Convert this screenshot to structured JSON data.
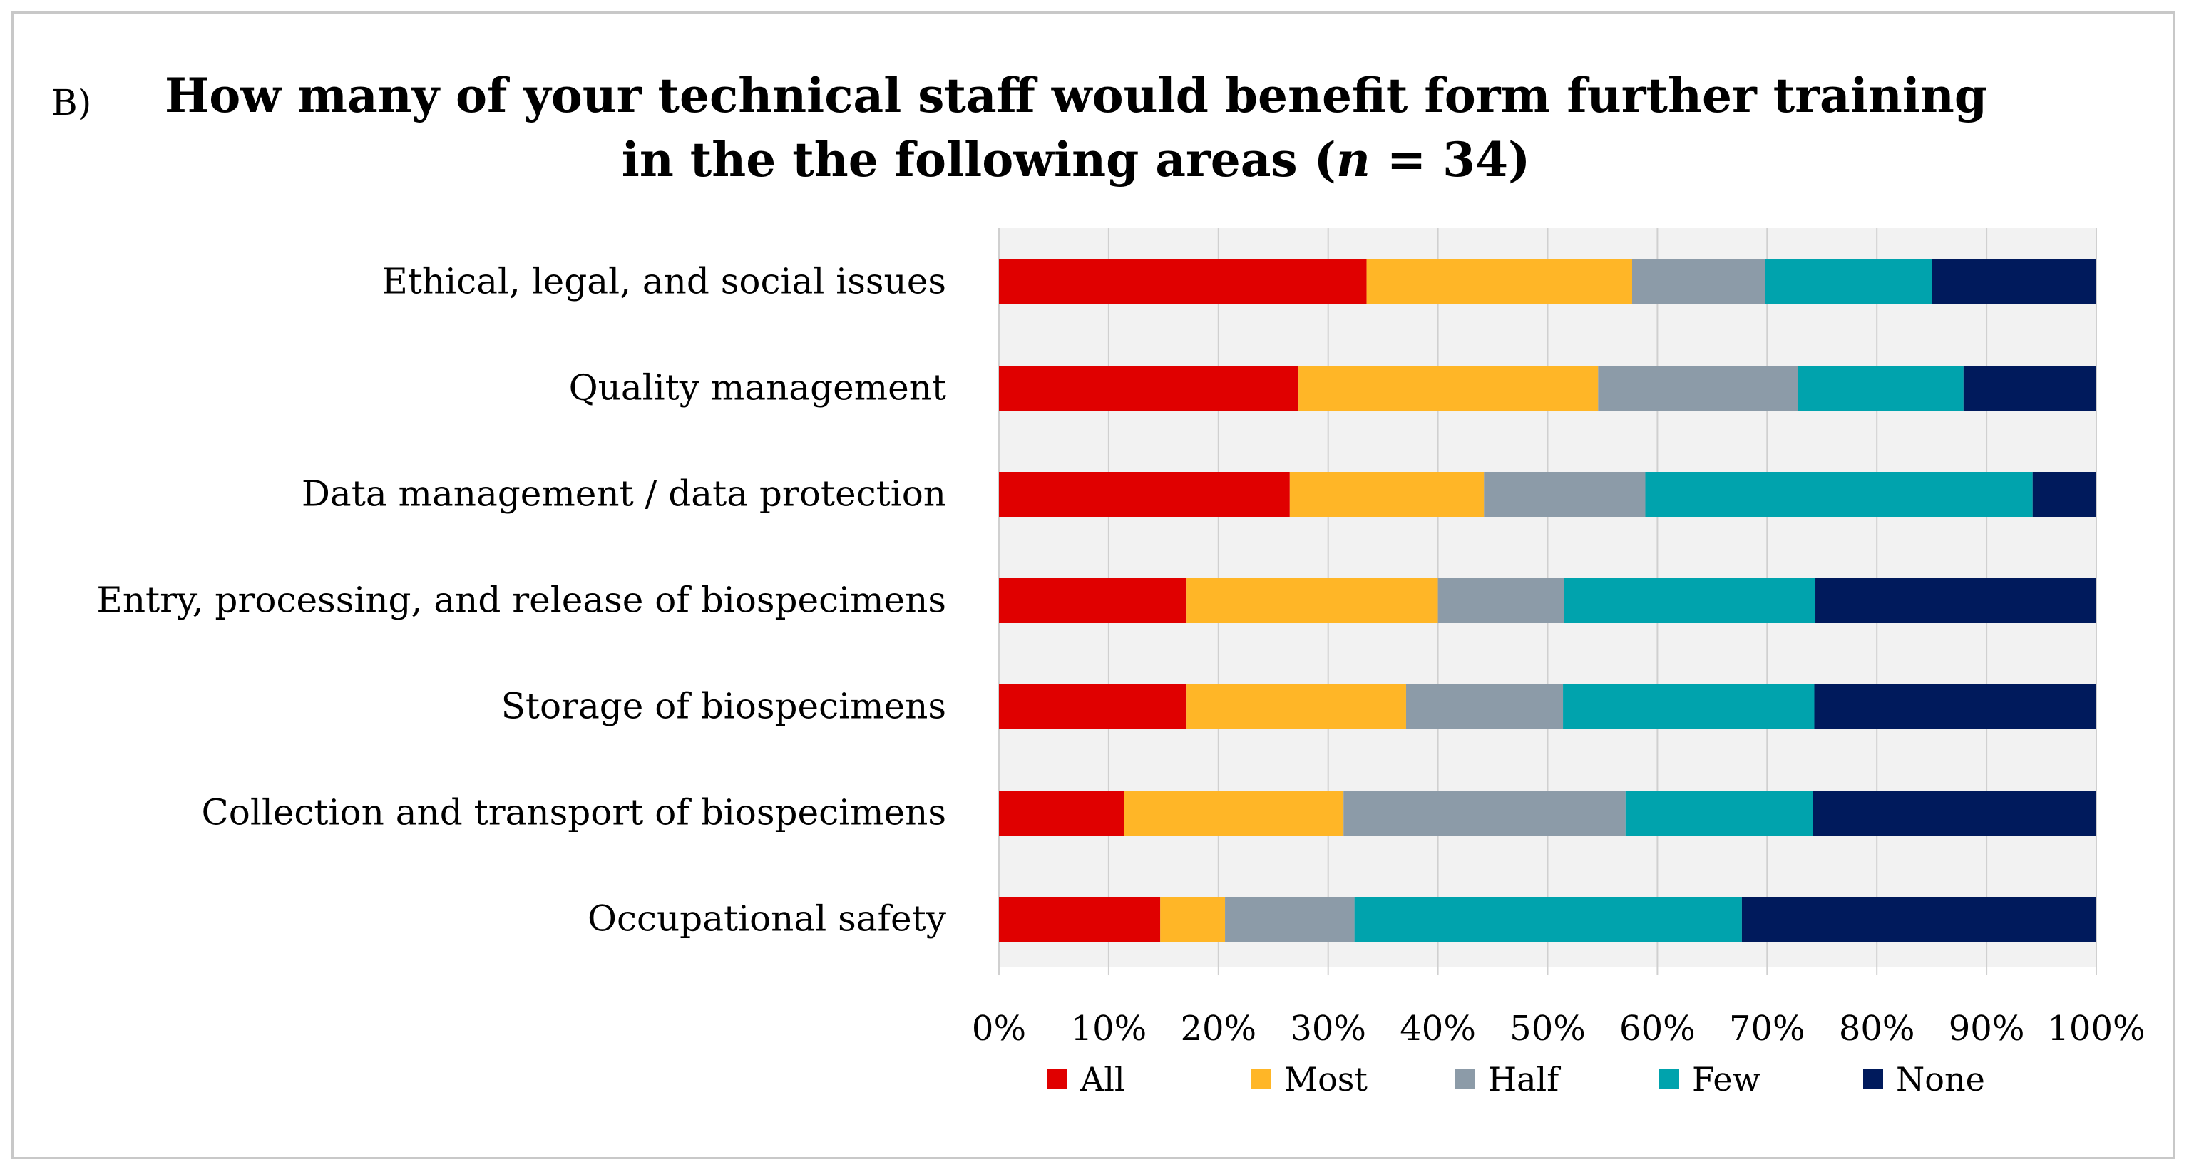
{
  "panel_label": "B)",
  "chart_data": {
    "type": "bar",
    "orientation": "horizontal",
    "stacked": "percent",
    "title_line1": "How many of your technical staff would benefit form further training",
    "title_line2_prefix": "in the the following areas (",
    "title_line2_var": "n",
    "title_line2_suffix": " = 34)",
    "categories": [
      "Ethical, legal, and social issues",
      "Quality management",
      "Data management / data protection",
      "Entry, processing, and release of biospecimens",
      "Storage of biospecimens",
      "Collection and transport of biospecimens",
      "Occupational safety"
    ],
    "series": [
      {
        "name": "All",
        "color": "#e00000",
        "values": [
          33.5,
          27.3,
          26.5,
          17.1,
          17.1,
          11.4,
          14.7
        ]
      },
      {
        "name": "Most",
        "color": "#ffb627",
        "values": [
          24.2,
          27.3,
          17.7,
          22.9,
          20.0,
          20.0,
          5.9
        ]
      },
      {
        "name": "Half",
        "color": "#8c9ba8",
        "values": [
          12.1,
          18.2,
          14.7,
          11.5,
          14.3,
          25.7,
          11.8
        ]
      },
      {
        "name": "Few",
        "color": "#00a3ad",
        "values": [
          15.2,
          15.1,
          35.3,
          22.9,
          22.9,
          17.1,
          35.3
        ]
      },
      {
        "name": "None",
        "color": "#001a5c",
        "values": [
          15.0,
          12.1,
          5.8,
          25.6,
          25.7,
          25.8,
          32.3
        ]
      }
    ],
    "xlim": [
      0,
      100
    ],
    "xticks": [
      "0%",
      "10%",
      "20%",
      "30%",
      "40%",
      "50%",
      "60%",
      "70%",
      "80%",
      "90%",
      "100%"
    ],
    "grid": true,
    "plot_background": "#f2f2f2",
    "legend_position": "bottom"
  }
}
